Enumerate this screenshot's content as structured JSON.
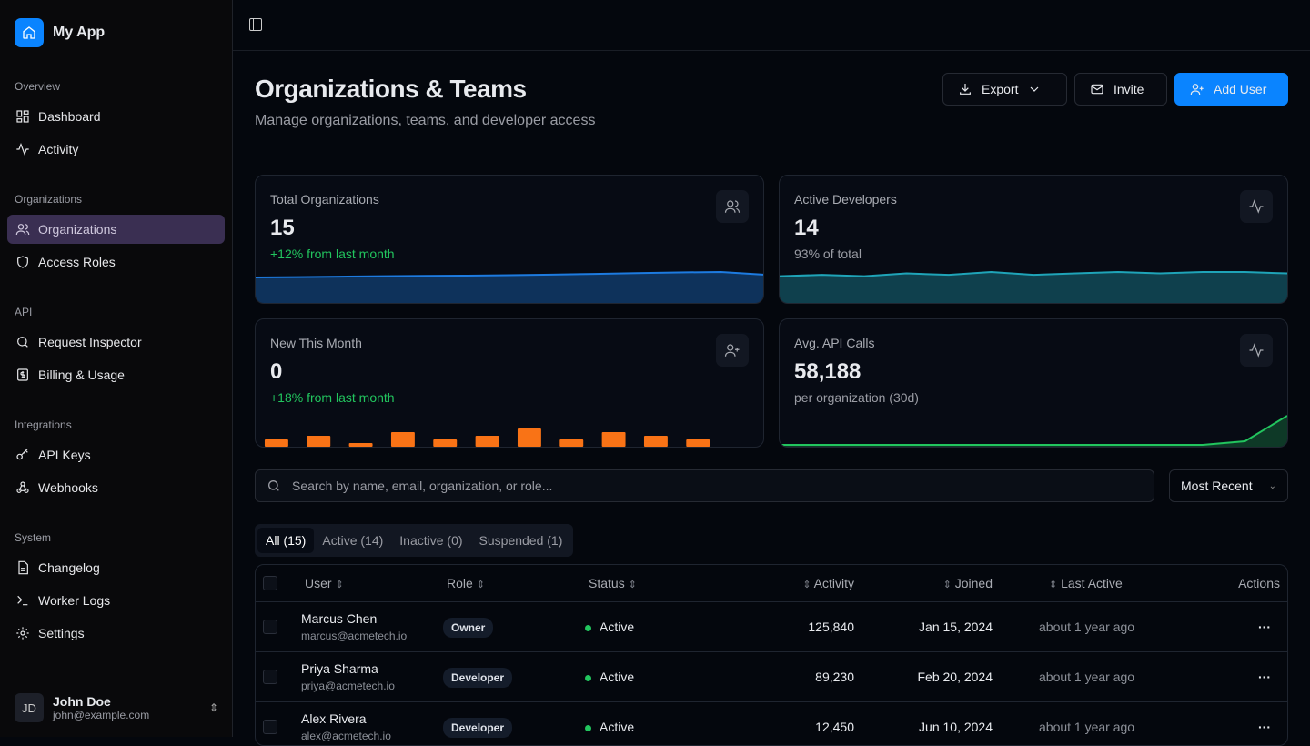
{
  "app": {
    "name": "My App",
    "icon": "home-icon"
  },
  "sidebar": {
    "sections": [
      {
        "title": "Overview",
        "items": [
          {
            "label": "Dashboard",
            "icon": "dashboard-icon"
          },
          {
            "label": "Activity",
            "icon": "activity-icon"
          }
        ]
      },
      {
        "title": "Organizations",
        "items": [
          {
            "label": "Organizations",
            "icon": "users-icon",
            "active": true
          },
          {
            "label": "Access Roles",
            "icon": "shield-icon"
          }
        ]
      },
      {
        "title": "API",
        "items": [
          {
            "label": "Request Inspector",
            "icon": "search-icon"
          },
          {
            "label": "Billing & Usage",
            "icon": "dollar-icon"
          }
        ]
      },
      {
        "title": "Integrations",
        "items": [
          {
            "label": "API Keys",
            "icon": "key-icon"
          },
          {
            "label": "Webhooks",
            "icon": "webhook-icon"
          }
        ]
      },
      {
        "title": "System",
        "items": [
          {
            "label": "Changelog",
            "icon": "file-icon"
          },
          {
            "label": "Worker Logs",
            "icon": "terminal-icon"
          },
          {
            "label": "Settings",
            "icon": "gear-icon"
          }
        ]
      }
    ],
    "user": {
      "initials": "JD",
      "name": "John Doe",
      "email": "john@example.com"
    }
  },
  "header": {
    "title": "Organizations & Teams",
    "subtitle": "Manage organizations, teams, and developer access",
    "export": "Export",
    "invite": "Invite",
    "add_user": "Add User"
  },
  "stats": [
    {
      "label": "Total Organizations",
      "value": "15",
      "sub": "+12% from last month",
      "color": "#1d7be0",
      "trend": [
        5,
        5.3,
        5.6,
        5.9,
        6.1,
        6.3,
        6.6,
        7,
        7.5,
        8,
        8.5,
        8.8,
        7
      ]
    },
    {
      "label": "Active Developers",
      "value": "14",
      "sub": "93% of total",
      "color": "#1fa4b8",
      "trend": [
        6,
        7,
        6,
        8,
        7,
        9,
        7,
        8,
        9,
        8,
        9,
        9,
        8
      ]
    },
    {
      "label": "New This Month",
      "value": "0",
      "sub": "+18% from last month",
      "color": "#f97316",
      "bars": [
        2,
        3,
        1,
        4,
        2,
        3,
        5,
        2,
        4,
        3,
        2
      ]
    },
    {
      "label": "Avg. API Calls",
      "value": "58,188",
      "sub": "per organization (30d)",
      "color": "#22c55e",
      "trend": [
        0,
        0,
        0,
        0,
        0,
        0,
        0,
        0,
        0,
        0,
        0,
        1,
        8
      ]
    }
  ],
  "search": {
    "placeholder": "Search by name, email, organization, or role...",
    "sort": "Most Recent"
  },
  "tabs": [
    "All (15)",
    "Active (14)",
    "Inactive (0)",
    "Suspended (1)"
  ],
  "table": {
    "columns": [
      "User",
      "Role",
      "Status",
      "Activity",
      "Joined",
      "Last Active",
      "Actions"
    ],
    "rows": [
      {
        "name": "Marcus Chen",
        "email": "marcus@acmetech.io",
        "role": "Owner",
        "status": "Active",
        "activity": "125,840",
        "joined": "Jan 15, 2024",
        "last": "about 1 year ago"
      },
      {
        "name": "Priya Sharma",
        "email": "priya@acmetech.io",
        "role": "Developer",
        "status": "Active",
        "activity": "89,230",
        "joined": "Feb 20, 2024",
        "last": "about 1 year ago"
      },
      {
        "name": "Alex Rivera",
        "email": "alex@acmetech.io",
        "role": "Developer",
        "status": "Active",
        "activity": "12,450",
        "joined": "Jun 10, 2024",
        "last": "about 1 year ago"
      }
    ]
  }
}
